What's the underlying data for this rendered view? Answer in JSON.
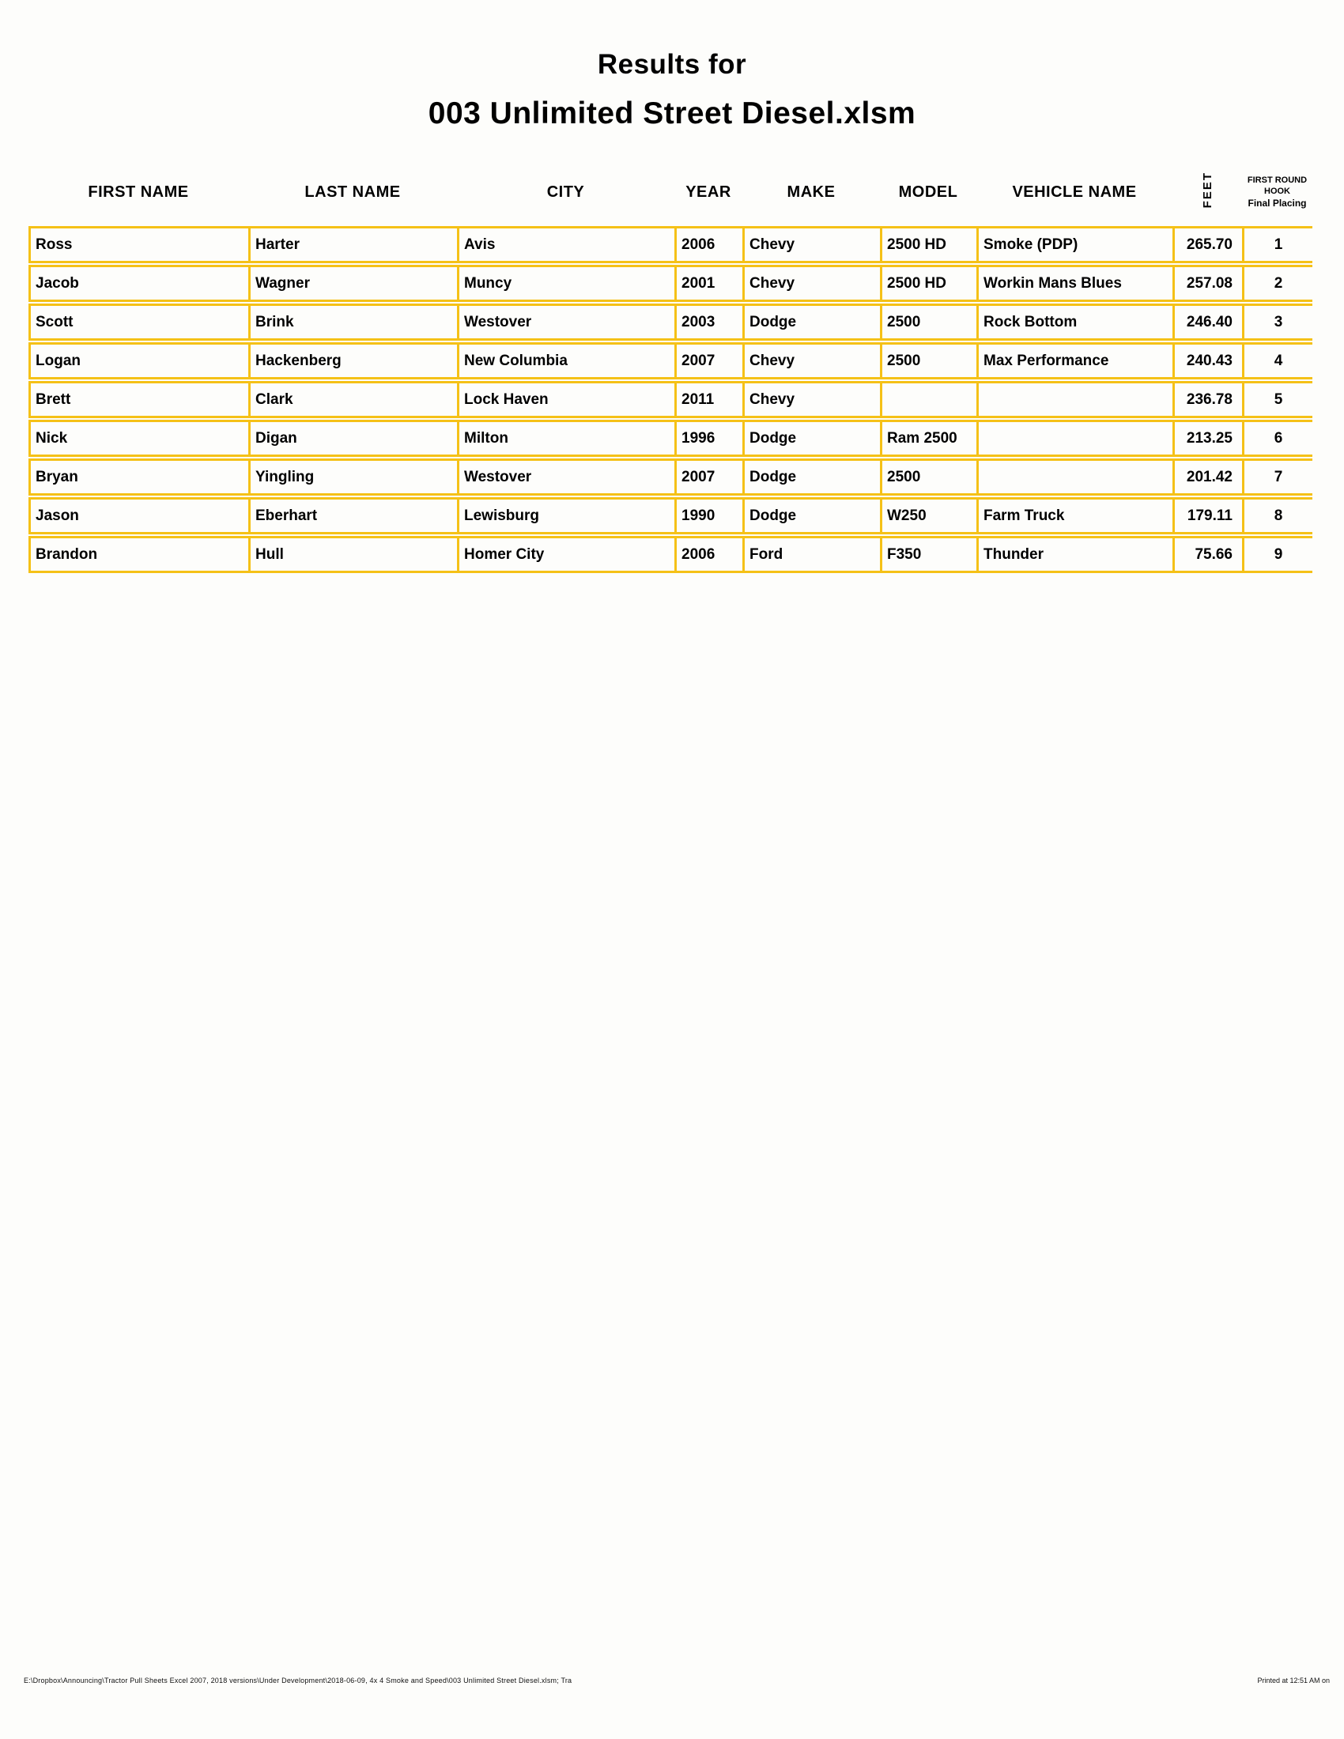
{
  "page": {
    "title_line1": "Results for",
    "title_line2": "003 Unlimited Street Diesel.xlsm",
    "accent_color": "#f5c117",
    "footer_left": "E:\\Dropbox\\Announcing\\Tractor Pull Sheets Excel 2007, 2018 versions\\Under Development\\2018-06-09, 4x 4 Smoke and Speed\\003 Unlimited Street Diesel.xlsm; Tra",
    "footer_right": "Printed at 12:51 AM on"
  },
  "table": {
    "headers": {
      "first": "FIRST NAME",
      "last": "LAST NAME",
      "city": "CITY",
      "year": "YEAR",
      "make": "MAKE",
      "model": "MODEL",
      "vehicle": "VEHICLE NAME",
      "feet": "FEET",
      "placing_line1": "FIRST ROUND",
      "placing_line2": "HOOK",
      "placing_line3": "Final Placing"
    },
    "rows": [
      {
        "first": "Ross",
        "last": "Harter",
        "city": "Avis",
        "year": "2006",
        "make": "Chevy",
        "model": "2500 HD",
        "vehicle": "Smoke (PDP)",
        "feet": "265.70",
        "place": "1"
      },
      {
        "first": "Jacob",
        "last": "Wagner",
        "city": "Muncy",
        "year": "2001",
        "make": "Chevy",
        "model": "2500 HD",
        "vehicle": "Workin Mans Blues",
        "feet": "257.08",
        "place": "2"
      },
      {
        "first": "Scott",
        "last": "Brink",
        "city": "Westover",
        "year": "2003",
        "make": "Dodge",
        "model": "2500",
        "vehicle": "Rock Bottom",
        "feet": "246.40",
        "place": "3"
      },
      {
        "first": "Logan",
        "last": "Hackenberg",
        "city": "New Columbia",
        "year": "2007",
        "make": "Chevy",
        "model": "2500",
        "vehicle": "Max Performance",
        "feet": "240.43",
        "place": "4"
      },
      {
        "first": "Brett",
        "last": "Clark",
        "city": "Lock Haven",
        "year": "2011",
        "make": "Chevy",
        "model": "",
        "vehicle": "",
        "feet": "236.78",
        "place": "5"
      },
      {
        "first": "Nick",
        "last": "Digan",
        "city": "Milton",
        "year": "1996",
        "make": "Dodge",
        "model": "Ram 2500",
        "vehicle": "",
        "feet": "213.25",
        "place": "6"
      },
      {
        "first": "Bryan",
        "last": "Yingling",
        "city": "Westover",
        "year": "2007",
        "make": "Dodge",
        "model": "2500",
        "vehicle": "",
        "feet": "201.42",
        "place": "7"
      },
      {
        "first": "Jason",
        "last": "Eberhart",
        "city": "Lewisburg",
        "year": "1990",
        "make": "Dodge",
        "model": "W250",
        "vehicle": "Farm Truck",
        "feet": "179.11",
        "place": "8"
      },
      {
        "first": "Brandon",
        "last": "Hull",
        "city": "Homer City",
        "year": "2006",
        "make": "Ford",
        "model": "F350",
        "vehicle": "Thunder",
        "feet": "75.66",
        "place": "9"
      }
    ]
  }
}
